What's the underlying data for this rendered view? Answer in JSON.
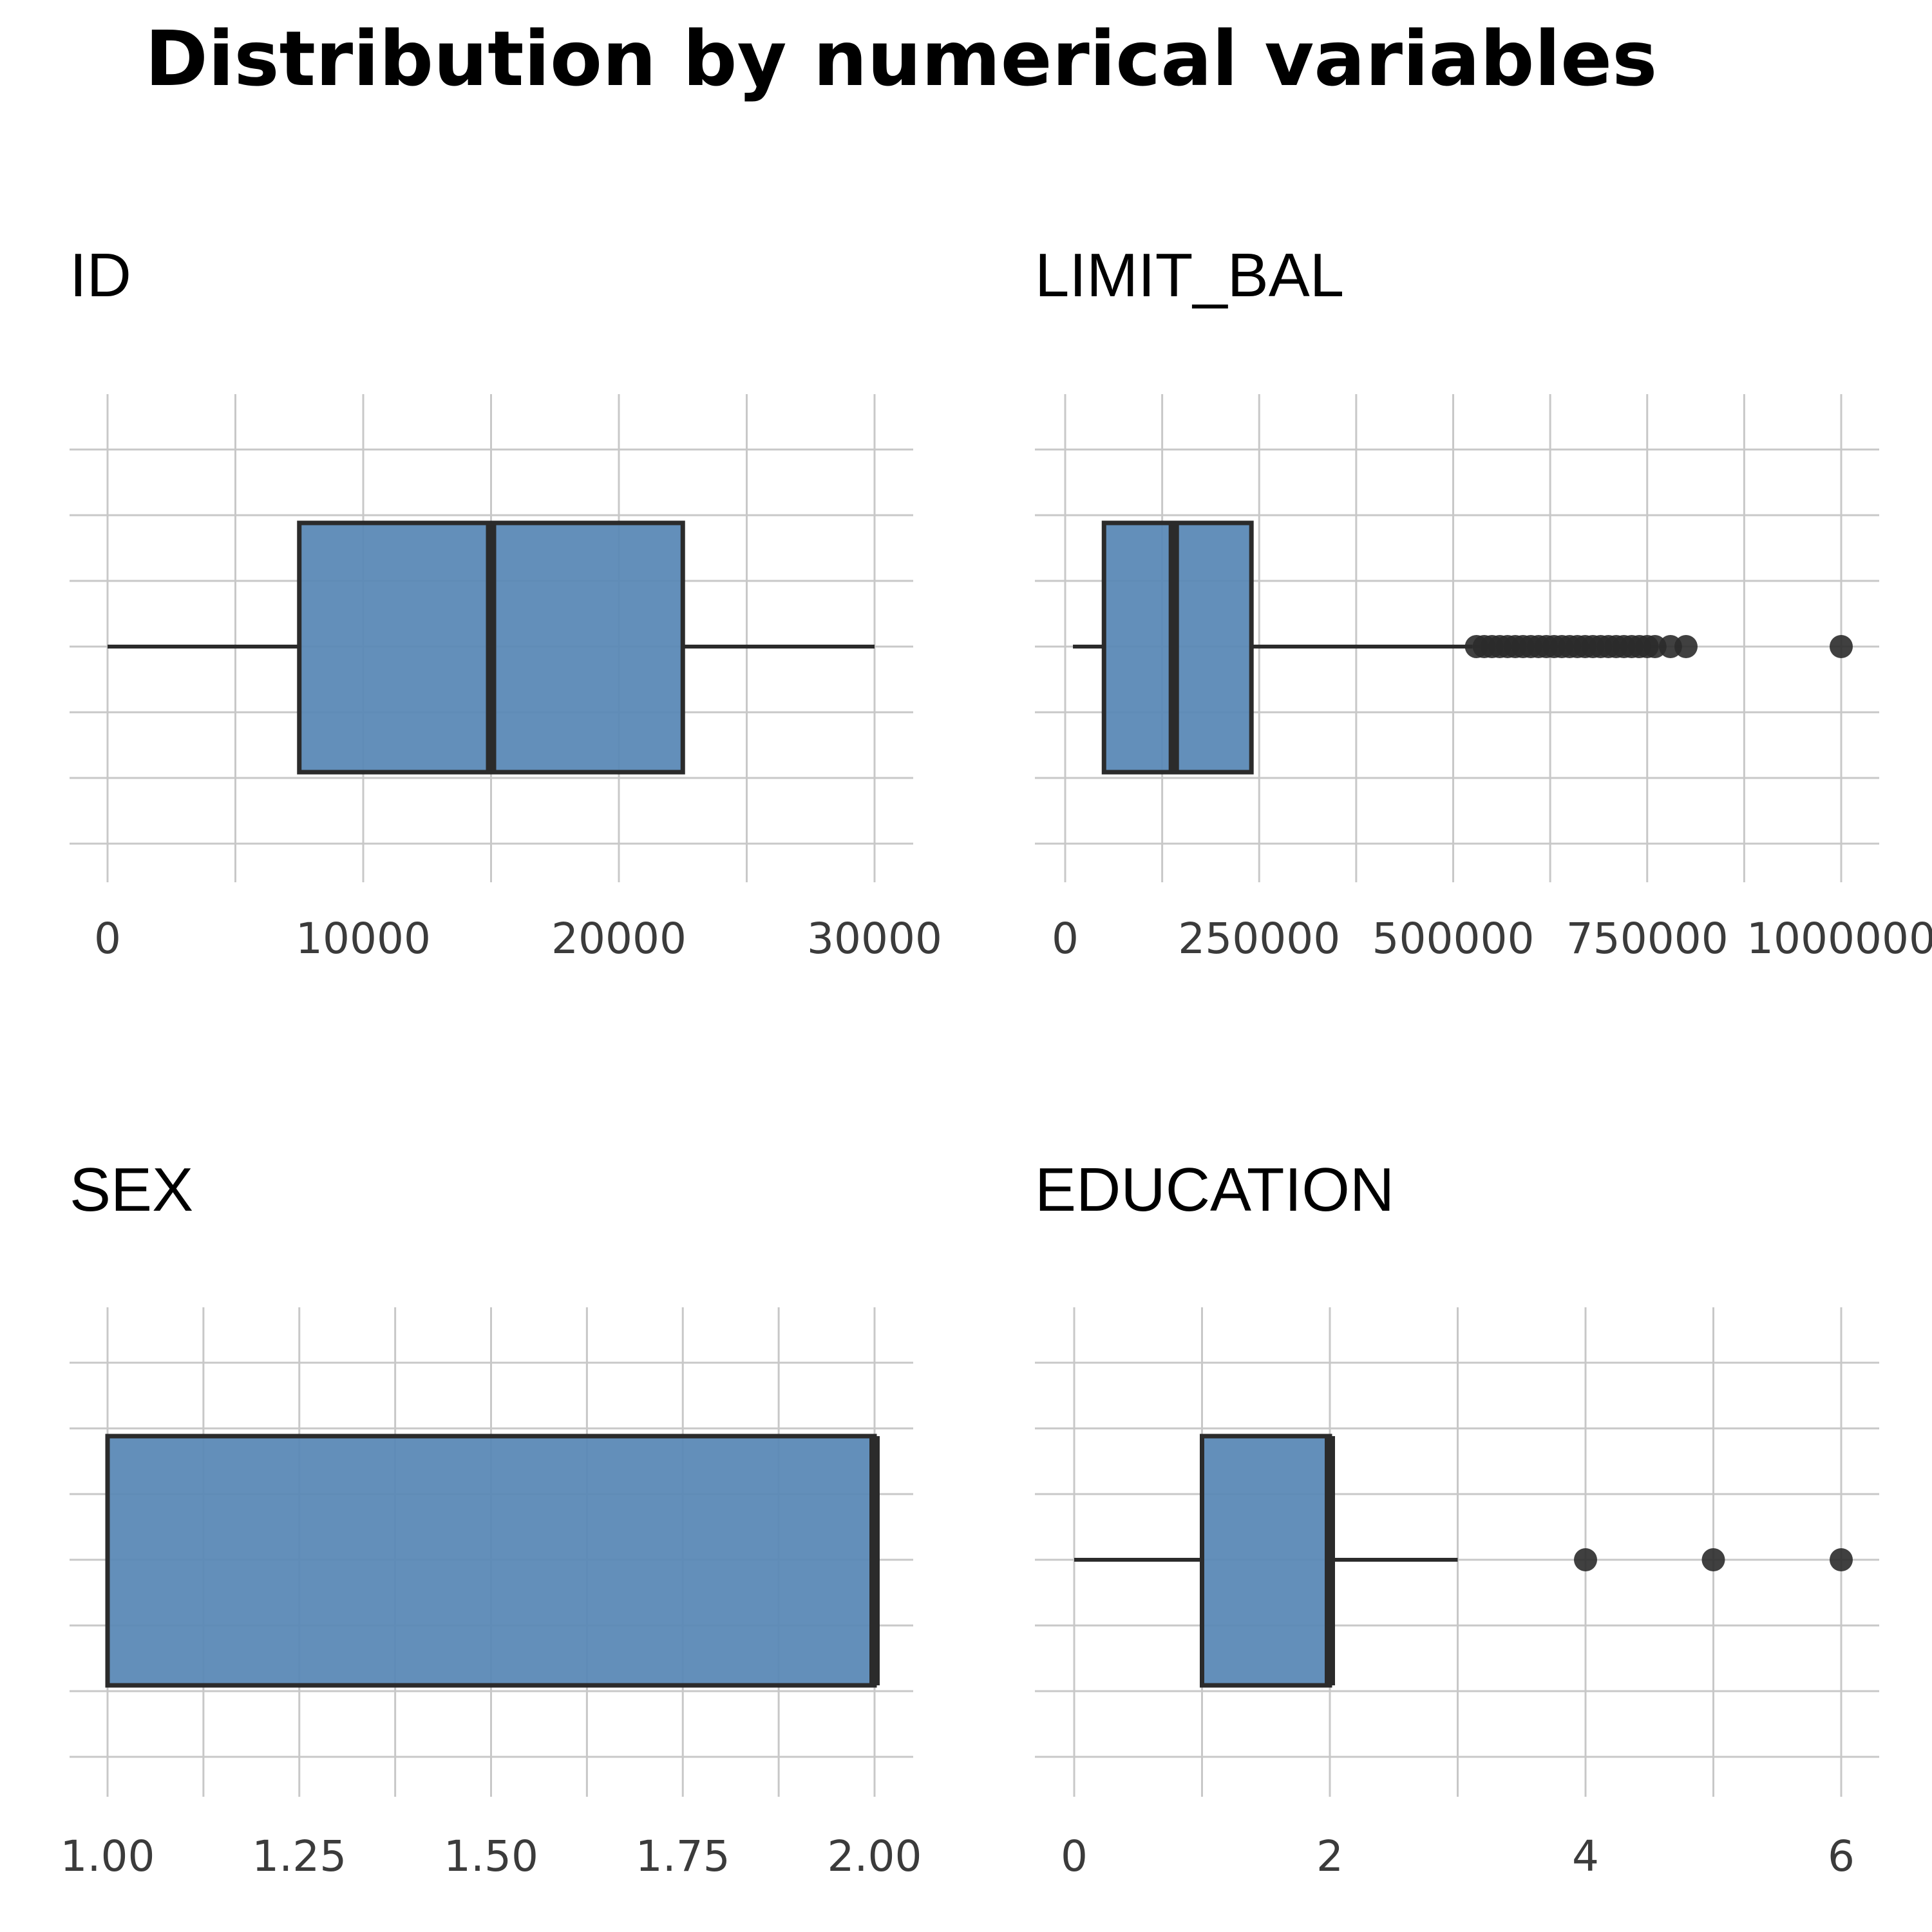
{
  "figure": {
    "title": "Distribution by numerical variables"
  },
  "colors": {
    "box_fill": "#5b89b6",
    "outline": "#2b2b2b",
    "grid": "#c8c8c8",
    "tick_text": "#3b3b3b"
  },
  "chart_data": [
    {
      "type": "boxplot",
      "title": "ID",
      "orientation": "horizontal",
      "xlim": [
        0,
        30000
      ],
      "ticks": [
        0,
        10000,
        20000,
        30000
      ],
      "tick_labels": [
        "0",
        "10000",
        "20000",
        "30000"
      ],
      "minor_ticks": [
        5000,
        15000,
        25000
      ],
      "whisker_low": 1,
      "q1": 7500,
      "median": 15000,
      "q3": 22500,
      "whisker_high": 30000,
      "outliers": [],
      "grid": true
    },
    {
      "type": "boxplot",
      "title": "LIMIT_BAL",
      "orientation": "horizontal",
      "xlim": [
        0,
        1000000
      ],
      "ticks": [
        0,
        250000,
        500000,
        750000,
        1000000
      ],
      "tick_labels": [
        "0",
        "250000",
        "500000",
        "750000",
        "1000000"
      ],
      "minor_ticks": [
        125000,
        375000,
        625000,
        875000
      ],
      "whisker_low": 10000,
      "q1": 50000,
      "median": 140000,
      "q3": 240000,
      "whisker_high": 525000,
      "outliers": [
        530000,
        540000,
        550000,
        560000,
        570000,
        580000,
        590000,
        600000,
        610000,
        620000,
        630000,
        640000,
        650000,
        660000,
        670000,
        680000,
        690000,
        700000,
        710000,
        720000,
        730000,
        740000,
        750000,
        760000,
        780000,
        800000,
        1000000
      ],
      "grid": true
    },
    {
      "type": "boxplot",
      "title": "SEX",
      "orientation": "horizontal",
      "xlim": [
        1,
        2
      ],
      "ticks": [
        1,
        1.25,
        1.5,
        1.75,
        2
      ],
      "tick_labels": [
        "1.00",
        "1.25",
        "1.50",
        "1.75",
        "2.00"
      ],
      "minor_ticks": [
        1.125,
        1.375,
        1.625,
        1.875
      ],
      "whisker_low": 1,
      "q1": 1,
      "median": 2,
      "q3": 2,
      "whisker_high": 2,
      "outliers": [],
      "grid": true
    },
    {
      "type": "boxplot",
      "title": "EDUCATION",
      "orientation": "horizontal",
      "xlim": [
        0,
        6
      ],
      "ticks": [
        0,
        2,
        4,
        6
      ],
      "tick_labels": [
        "0",
        "2",
        "4",
        "6"
      ],
      "minor_ticks": [
        1,
        3,
        5
      ],
      "whisker_low": 0,
      "q1": 1,
      "median": 2,
      "q3": 2,
      "whisker_high": 3,
      "outliers": [
        4,
        5,
        6
      ],
      "grid": true
    }
  ]
}
